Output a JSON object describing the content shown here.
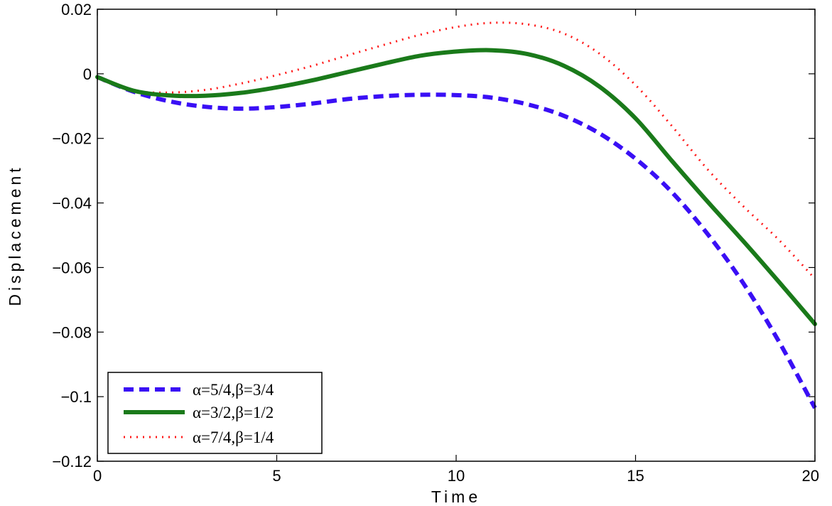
{
  "chart_data": {
    "type": "line",
    "title": "",
    "xlabel": "Time",
    "ylabel": "Displacement",
    "xlim": [
      0,
      20
    ],
    "ylim": [
      -0.12,
      0.02
    ],
    "xticks": [
      0,
      5,
      10,
      15,
      20
    ],
    "yticks": [
      0.02,
      0,
      -0.02,
      -0.04,
      -0.06,
      -0.08,
      -0.1,
      -0.12
    ],
    "xtick_labels": [
      "0",
      "5",
      "10",
      "15",
      "20"
    ],
    "ytick_labels": [
      "0.02",
      "0",
      "−0.02",
      "−0.04",
      "−0.06",
      "−0.08",
      "−0.1",
      "−0.12"
    ],
    "grid": false,
    "legend_position": "bottom-left",
    "x": [
      0,
      1,
      2,
      3,
      4,
      5,
      6,
      7,
      8,
      9,
      10,
      11,
      12,
      13,
      14,
      15,
      16,
      17,
      18,
      19,
      20
    ],
    "series": [
      {
        "name": "α=5/4,β=3/4",
        "color": "#3a0ff5",
        "style": "dashed",
        "values": [
          -0.001,
          -0.0055,
          -0.0085,
          -0.0102,
          -0.0108,
          -0.0103,
          -0.0092,
          -0.0078,
          -0.0069,
          -0.0065,
          -0.0066,
          -0.0074,
          -0.0095,
          -0.013,
          -0.0185,
          -0.0263,
          -0.0365,
          -0.0495,
          -0.0648,
          -0.083,
          -0.1035
        ]
      },
      {
        "name": "α=3/2,β=1/2",
        "color": "#1a7a1a",
        "style": "solid",
        "values": [
          -0.001,
          -0.0052,
          -0.0067,
          -0.0068,
          -0.0059,
          -0.0042,
          -0.002,
          0.0006,
          0.0032,
          0.0056,
          0.0069,
          0.0073,
          0.0061,
          0.0025,
          -0.004,
          -0.0138,
          -0.0268,
          -0.0395,
          -0.0518,
          -0.0645,
          -0.0775
        ]
      },
      {
        "name": "α=7/4,β=1/4",
        "color": "#ff1a1a",
        "style": "dotted",
        "values": [
          -0.0015,
          -0.0052,
          -0.0058,
          -0.005,
          -0.003,
          -0.0004,
          0.0025,
          0.0058,
          0.009,
          0.0121,
          0.0145,
          0.0158,
          0.0153,
          0.0125,
          0.0062,
          -0.0035,
          -0.016,
          -0.0295,
          -0.041,
          -0.0515,
          -0.0635
        ]
      }
    ]
  }
}
